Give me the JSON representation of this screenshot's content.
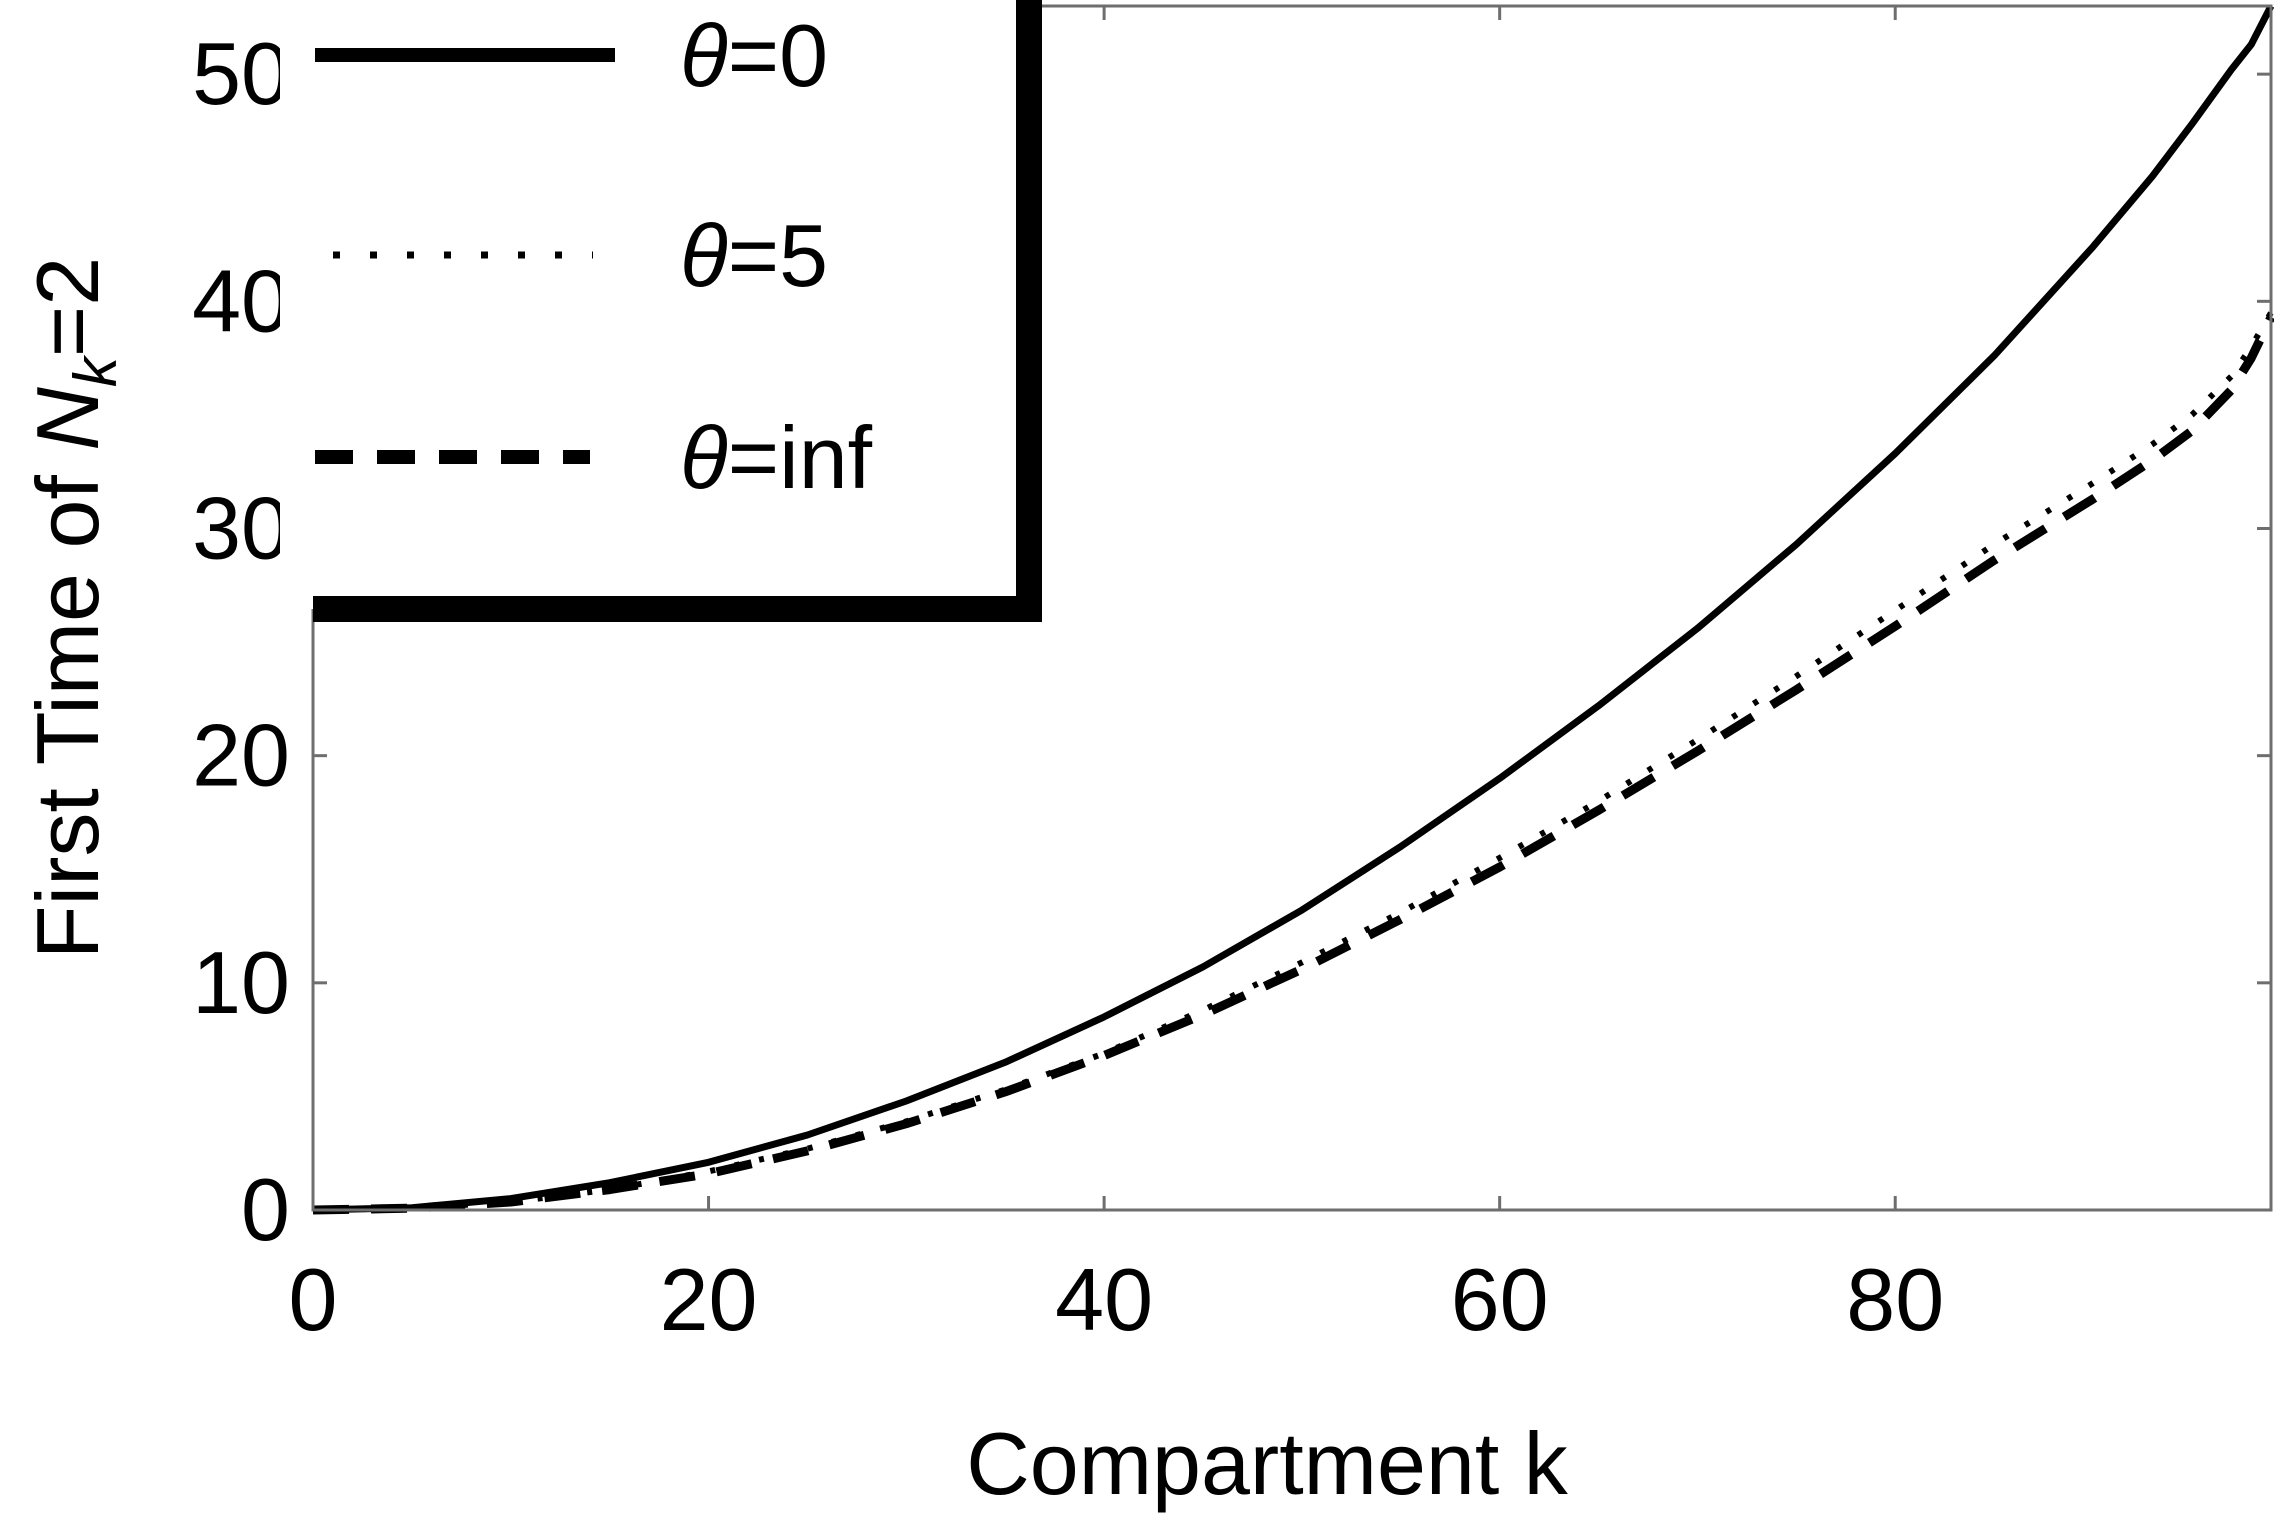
{
  "chart_data": {
    "type": "line",
    "title": "",
    "xlabel": "Compartment k",
    "ylabel": {
      "prefix": "First Time of ",
      "var": "N",
      "sub": "k",
      "suffix": "=2"
    },
    "xlim": [
      0,
      99
    ],
    "ylim": [
      0,
      53
    ],
    "xticks": [
      0,
      20,
      40,
      60,
      80
    ],
    "yticks": [
      0,
      10,
      20,
      30,
      40,
      50
    ],
    "grid": false,
    "legend_position": "top-left",
    "series": [
      {
        "name": "θ=0",
        "legend": {
          "symbol": "θ",
          "text": "=0"
        },
        "style": "solid",
        "color": "#000000",
        "x": [
          0,
          5,
          10,
          15,
          20,
          25,
          30,
          35,
          40,
          45,
          50,
          55,
          60,
          65,
          70,
          75,
          80,
          85,
          90,
          93,
          95,
          97,
          98,
          99
        ],
        "y": [
          0,
          0.1,
          0.5,
          1.2,
          2.1,
          3.3,
          4.8,
          6.5,
          8.5,
          10.7,
          13.2,
          16.0,
          19.0,
          22.2,
          25.6,
          29.3,
          33.3,
          37.6,
          42.4,
          45.5,
          47.8,
          50.2,
          51.3,
          53.0
        ]
      },
      {
        "name": "θ=5",
        "legend": {
          "symbol": "θ",
          "text": "=5"
        },
        "style": "dotted",
        "color": "#000000",
        "x": [
          0,
          5,
          10,
          15,
          20,
          25,
          30,
          35,
          40,
          45,
          50,
          55,
          60,
          65,
          70,
          75,
          80,
          85,
          90,
          93,
          95,
          97,
          98,
          99
        ],
        "y": [
          0,
          0.08,
          0.35,
          0.9,
          1.7,
          2.7,
          3.9,
          5.3,
          6.9,
          8.8,
          10.9,
          13.1,
          15.5,
          18.0,
          20.7,
          23.5,
          26.4,
          29.3,
          32.0,
          33.7,
          35.0,
          36.7,
          38.0,
          39.5
        ]
      },
      {
        "name": "θ=inf",
        "legend": {
          "symbol": "θ",
          "text": "=inf"
        },
        "style": "dashed",
        "color": "#000000",
        "x": [
          0,
          5,
          10,
          15,
          20,
          25,
          30,
          35,
          40,
          45,
          50,
          55,
          60,
          65,
          70,
          75,
          80,
          85,
          90,
          93,
          95,
          97,
          98,
          99
        ],
        "y": [
          0,
          0.08,
          0.35,
          0.9,
          1.6,
          2.6,
          3.8,
          5.2,
          6.8,
          8.6,
          10.6,
          12.8,
          15.1,
          17.6,
          20.2,
          22.9,
          25.7,
          28.6,
          31.3,
          33.0,
          34.3,
          36.1,
          37.5,
          39.3
        ]
      }
    ]
  }
}
